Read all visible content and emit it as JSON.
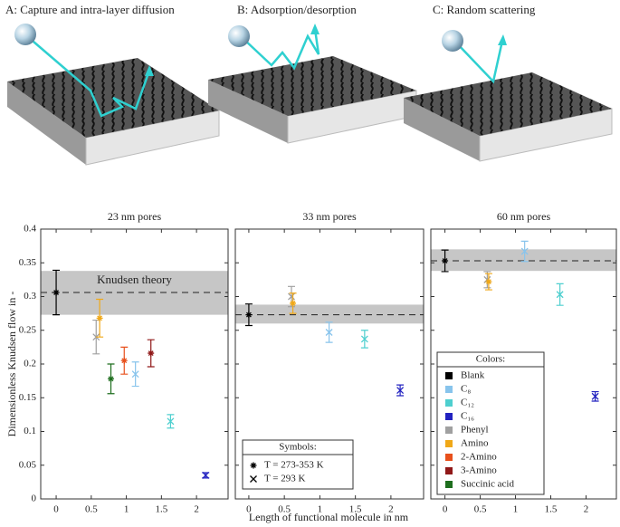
{
  "captions": [
    "A: Capture and intra-layer diffusion",
    "B: Adsorption/desorption",
    "C: Random scattering"
  ],
  "ylabel": "Dimensionless Knudsen flow in -",
  "xlabel": "Length of functional molecule in nm",
  "symbols_legend": {
    "title": "Symbols:",
    "entries": [
      {
        "marker": "asterisk",
        "label": "T = 273-353 K"
      },
      {
        "marker": "cross",
        "label": "T = 293 K"
      }
    ]
  },
  "colors_legend": {
    "title": "Colors:",
    "entries": [
      {
        "label": "Blank",
        "color": "#000000"
      },
      {
        "label": "C₈",
        "color": "#88c4ec"
      },
      {
        "label": "C₁₂",
        "color": "#4ecfcf"
      },
      {
        "label": "C₁₆",
        "color": "#2222c0"
      },
      {
        "label": "Phenyl",
        "color": "#a0a0a0"
      },
      {
        "label": "Amino",
        "color": "#f0a818"
      },
      {
        "label": "2-Amino",
        "color": "#e8501c"
      },
      {
        "label": "3-Amino",
        "color": "#901818"
      },
      {
        "label": "Succinic acid",
        "color": "#1e6e1e"
      }
    ]
  },
  "chart_data": [
    {
      "type": "errorbar",
      "title": "23 nm pores",
      "annotation": "Knudsen theory",
      "reference": 0.306,
      "band": [
        0.273,
        0.338
      ],
      "xlim": [
        -0.22,
        2.45
      ],
      "ylim": [
        0,
        0.4
      ],
      "xticks": [
        0,
        0.5,
        1,
        1.5,
        2
      ],
      "yticks": [
        0,
        0.05,
        0.1,
        0.15,
        0.2,
        0.25,
        0.3,
        0.35,
        0.4
      ],
      "ytick_labels": true,
      "x": [
        0,
        0.57,
        0.62,
        0.78,
        0.97,
        1.13,
        1.35,
        1.63,
        2.13
      ],
      "values": [
        0.306,
        0.24,
        0.268,
        0.178,
        0.205,
        0.185,
        0.216,
        0.115,
        0.035
      ],
      "errors": [
        0.033,
        0.025,
        0.028,
        0.022,
        0.02,
        0.018,
        0.02,
        0.01,
        0.004
      ],
      "colors": [
        "#000000",
        "#a0a0a0",
        "#f0a818",
        "#1e6e1e",
        "#e8501c",
        "#88c4ec",
        "#901818",
        "#4ecfcf",
        "#2222c0"
      ],
      "markers": [
        "asterisk",
        "cross",
        "asterisk",
        "asterisk",
        "asterisk",
        "cross",
        "asterisk",
        "cross",
        "cross"
      ]
    },
    {
      "type": "errorbar",
      "title": "33 nm pores",
      "reference": 0.273,
      "band": [
        0.26,
        0.288
      ],
      "xlim": [
        -0.19,
        2.46
      ],
      "ylim": [
        0,
        0.4
      ],
      "xticks": [
        0,
        0.5,
        1,
        1.5,
        2
      ],
      "yticks": [
        0,
        0.05,
        0.1,
        0.15,
        0.2,
        0.25,
        0.3,
        0.35,
        0.4
      ],
      "ytick_labels": false,
      "x": [
        0,
        0.6,
        0.62,
        1.13,
        1.63,
        2.13
      ],
      "values": [
        0.273,
        0.3,
        0.29,
        0.247,
        0.237,
        0.161
      ],
      "errors": [
        0.016,
        0.015,
        0.015,
        0.015,
        0.013,
        0.008
      ],
      "colors": [
        "#000000",
        "#a0a0a0",
        "#f0a818",
        "#88c4ec",
        "#4ecfcf",
        "#2222c0"
      ],
      "markers": [
        "asterisk",
        "cross",
        "asterisk",
        "cross",
        "cross",
        "cross"
      ]
    },
    {
      "type": "errorbar",
      "title": "60 nm pores",
      "reference": 0.353,
      "band": [
        0.338,
        0.37
      ],
      "xlim": [
        -0.2,
        2.43
      ],
      "ylim": [
        0,
        0.4
      ],
      "xticks": [
        0,
        0.5,
        1,
        1.5,
        2
      ],
      "yticks": [
        0,
        0.05,
        0.1,
        0.15,
        0.2,
        0.25,
        0.3,
        0.35,
        0.4
      ],
      "ytick_labels": false,
      "x": [
        0,
        0.6,
        0.62,
        1.13,
        1.63,
        2.13
      ],
      "values": [
        0.353,
        0.325,
        0.322,
        0.367,
        0.303,
        0.152
      ],
      "errors": [
        0.016,
        0.012,
        0.012,
        0.015,
        0.016,
        0.007
      ],
      "colors": [
        "#000000",
        "#a0a0a0",
        "#f0a818",
        "#88c4ec",
        "#4ecfcf",
        "#2222c0"
      ],
      "markers": [
        "asterisk",
        "cross",
        "asterisk",
        "cross",
        "cross",
        "cross"
      ]
    }
  ]
}
